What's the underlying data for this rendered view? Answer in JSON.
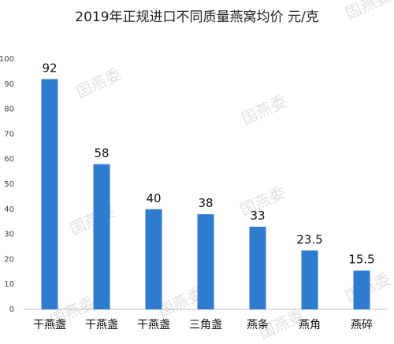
{
  "chart_data": {
    "type": "bar",
    "title": "2019年正规进口不同质量燕窝均价 元/克",
    "categories": [
      "干燕盏",
      "干燕盏",
      "干燕盏",
      "三角盏",
      "燕条",
      "燕角",
      "燕碎"
    ],
    "values": [
      92,
      58,
      40,
      38,
      33,
      23.5,
      15.5
    ],
    "value_labels": [
      "92",
      "58",
      "40",
      "38",
      "33",
      "23.5",
      "15.5"
    ],
    "ylim": [
      0,
      100
    ],
    "yticks": [
      0,
      10,
      20,
      30,
      40,
      50,
      60,
      70,
      80,
      90,
      100
    ],
    "bar_color": "#2e7bd0",
    "grid": false,
    "xlabel": "",
    "ylabel": ""
  },
  "watermark": {
    "text": "国燕委"
  }
}
